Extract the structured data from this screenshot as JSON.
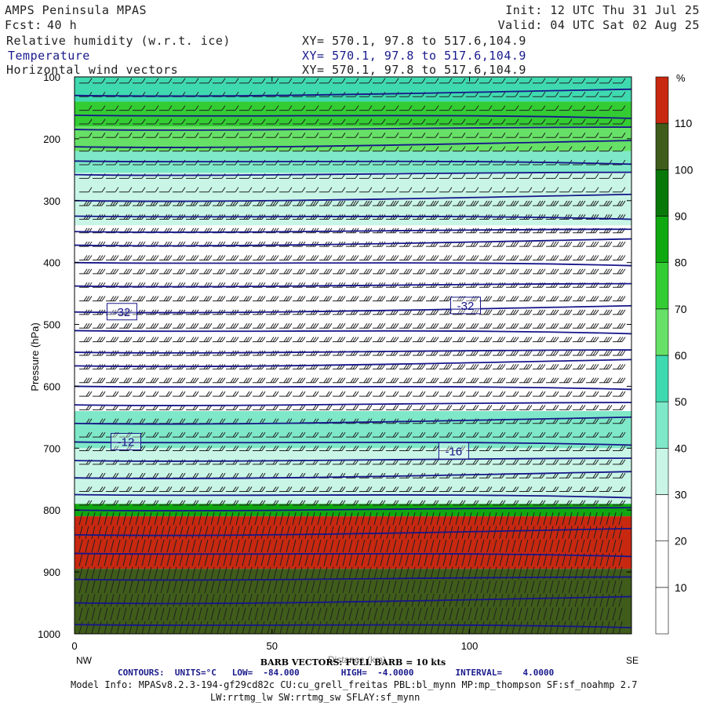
{
  "header": {
    "title": "AMPS Peninsula MPAS",
    "fcst_label": "Fcst:",
    "fcst_value": "40 h",
    "init": "Init: 12 UTC Thu 31 Jul 25",
    "valid": "Valid: 04 UTC Sat 02 Aug 25",
    "fields": [
      {
        "name": "Relative humidity (w.r.t. ice)",
        "xy": "XY= 570.1, 97.8 to 517.6,104.9",
        "color": "#222222"
      },
      {
        "name": "Temperature",
        "xy": "XY= 570.1, 97.8 to 517.6,104.9",
        "color": "#1a1a8c"
      },
      {
        "name": "Horizontal wind vectors",
        "xy": "XY= 570.1, 97.8 to 517.6,104.9",
        "color": "#222222"
      }
    ]
  },
  "chart_data": {
    "type": "heatmap",
    "ylabel": "Pressure (hPa)",
    "xlabel": "Distance (km)",
    "x_ticks": [
      "0",
      "50",
      "100"
    ],
    "x_tick_values": [
      0,
      50,
      100
    ],
    "xlim": [
      0,
      141
    ],
    "y_ticks": [
      "100",
      "200",
      "300",
      "400",
      "500",
      "600",
      "700",
      "800",
      "900",
      "1000"
    ],
    "y_tick_values": [
      100,
      200,
      300,
      400,
      500,
      600,
      700,
      800,
      900,
      1000
    ],
    "ylim": [
      1000,
      100
    ],
    "left_end_label": "NW",
    "right_end_label": "SE",
    "colorbar": {
      "unit": "%",
      "labels": [
        "10",
        "20",
        "30",
        "40",
        "50",
        "60",
        "70",
        "80",
        "90",
        "100",
        "110"
      ],
      "colors": [
        "#ffffff",
        "#ffffff",
        "#ffffff",
        "#c8f5e6",
        "#7ee8c8",
        "#3fd9b0",
        "#66e066",
        "#33cc33",
        "#10a810",
        "#087808",
        "#3f5c1a",
        "#c82810"
      ]
    },
    "rh_bands": [
      {
        "p_top": 100,
        "p_bot": 140,
        "rh": 55
      },
      {
        "p_top": 140,
        "p_bot": 180,
        "rh": 75
      },
      {
        "p_top": 180,
        "p_bot": 220,
        "rh": 65
      },
      {
        "p_top": 220,
        "p_bot": 255,
        "rh": 42
      },
      {
        "p_top": 255,
        "p_bot": 300,
        "rh": 38
      },
      {
        "p_top": 300,
        "p_bot": 340,
        "rh": 33
      },
      {
        "p_top": 340,
        "p_bot": 640,
        "rh": 15
      },
      {
        "p_top": 640,
        "p_bot": 700,
        "rh": 45
      },
      {
        "p_top": 700,
        "p_bot": 790,
        "rh": 33
      },
      {
        "p_top": 790,
        "p_bot": 810,
        "rh": 85
      },
      {
        "p_top": 810,
        "p_bot": 895,
        "rh": 112
      },
      {
        "p_top": 895,
        "p_bot": 1000,
        "rh": 103
      }
    ],
    "temperature_contours": {
      "units": "°C",
      "low": -84.0,
      "high": -4.0,
      "interval": 4.0,
      "labels": [
        {
          "text": "-32",
          "x": 12,
          "p": 480
        },
        {
          "text": "-32",
          "x": 99,
          "p": 470
        },
        {
          "text": "-12",
          "x": 13,
          "p": 690
        },
        {
          "text": "-16",
          "x": 96,
          "p": 705
        }
      ]
    },
    "barb_legend": "BARB VECTORS: FULL BARB = 10 kts"
  },
  "footer": {
    "contours_line": "CONTOURS:  UNITS=°C   LOW=  -84.000        HIGH=  -4.0000        INTERVAL=    4.0000",
    "model_info": "Model Info: MPASv8.2.3-194-gf29cd82c CU:cu_grell_freitas PBL:bl_mynn MP:mp_thompson SF:sf_noahmp 2.7",
    "model_info2": "LW:rrtmg_lw SW:rrtmg_sw SFLAY:sf_mynn"
  },
  "colors": {
    "contour": "#16168a",
    "barb": "#222222",
    "axis": "#000000"
  }
}
